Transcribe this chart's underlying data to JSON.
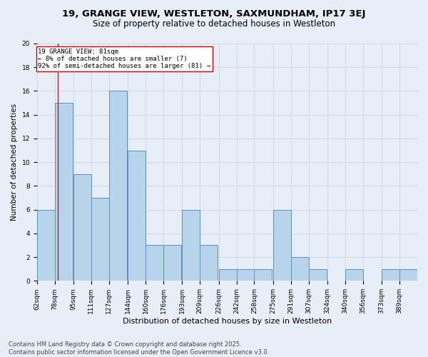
{
  "title_line1": "19, GRANGE VIEW, WESTLETON, SAXMUNDHAM, IP17 3EJ",
  "title_line2": "Size of property relative to detached houses in Westleton",
  "xlabel": "Distribution of detached houses by size in Westleton",
  "ylabel": "Number of detached properties",
  "bar_edges": [
    62,
    78,
    95,
    111,
    127,
    144,
    160,
    176,
    193,
    209,
    226,
    242,
    258,
    275,
    291,
    307,
    324,
    340,
    356,
    373,
    389
  ],
  "bar_heights": [
    6,
    15,
    9,
    7,
    16,
    11,
    3,
    3,
    6,
    3,
    1,
    1,
    1,
    6,
    2,
    1,
    0,
    1,
    0,
    1,
    1
  ],
  "bar_color": "#b8d4ea",
  "bar_edge_color": "#5b8fc9",
  "red_line_x": 81,
  "annotation_text": "19 GRANGE VIEW: 81sqm\n← 8% of detached houses are smaller (7)\n92% of semi-detached houses are larger (81) →",
  "annotation_box_color": "#ffffff",
  "annotation_box_edge": "#cc0000",
  "ylim": [
    0,
    20
  ],
  "yticks": [
    0,
    2,
    4,
    6,
    8,
    10,
    12,
    14,
    16,
    18,
    20
  ],
  "grid_color": "#d0d8e8",
  "background_color": "#e8eef8",
  "footer_text": "Contains HM Land Registry data © Crown copyright and database right 2025.\nContains public sector information licensed under the Open Government Licence v3.0.",
  "tick_label_fontsize": 6.5,
  "title_fontsize1": 9.5,
  "title_fontsize2": 8.5,
  "xlabel_fontsize": 8,
  "ylabel_fontsize": 7.5,
  "annotation_fontsize": 6.5,
  "footer_fontsize": 6
}
